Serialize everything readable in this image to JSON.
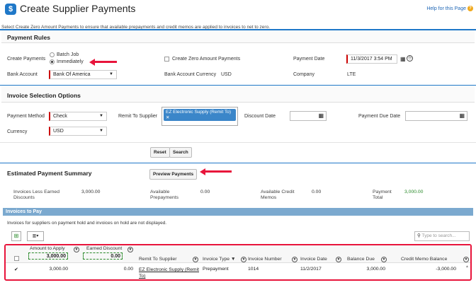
{
  "header": {
    "title": "Create Supplier Payments",
    "help": "Help for this Page",
    "subtitle": "Select Create Zero Amount Payments to ensure that available prepayments and credit memos are applied to invoices to net to zero."
  },
  "payment_rules": {
    "title": "Payment Rules",
    "create_payments_label": "Create Payments",
    "batch_job": "Batch Job",
    "immediately": "Immediately",
    "zero_amount_label": "Create Zero Amount Payments",
    "payment_date_label": "Payment Date",
    "payment_date_value": "11/3/2017 3:54 PM",
    "bank_account_label": "Bank Account",
    "bank_account_value": "Bank Of America",
    "currency_label": "Bank Account Currency",
    "currency_value": "USD",
    "company_label": "Company",
    "company_value": "LTE"
  },
  "invoice_selection": {
    "title": "Invoice Selection Options",
    "payment_method_label": "Payment Method",
    "payment_method_value": "Check",
    "remit_label": "Remit To Supplier",
    "remit_value": "EZ Electronic Supply (Remit To)",
    "discount_date_label": "Discount Date",
    "payment_due_label": "Payment Due Date",
    "currency_label": "Currency",
    "currency_value": "USD",
    "reset": "Reset",
    "search": "Search"
  },
  "summary": {
    "title": "Estimated Payment Summary",
    "preview": "Preview Payments",
    "less_earned_label_1": "Invoices Less Earned",
    "less_earned_label_2": "Discounts",
    "less_earned_value": "3,000.00",
    "prepay_label_1": "Available",
    "prepay_label_2": "Prepayments",
    "prepay_value": "0.00",
    "credit_label_1": "Available Credit",
    "credit_label_2": "Memos",
    "credit_value": "0.00",
    "total_label_1": "Payment",
    "total_label_2": "Total",
    "total_value": "3,000.00",
    "total_color": "#2a8a2a"
  },
  "invoices": {
    "title": "Invoices to Pay",
    "note": "Invoices for suppliers on payment hold and invoices on hold are not displayed.",
    "search_placeholder": "Type to search...",
    "columns": {
      "amount": "Amount to Apply",
      "earned": "Earned Discount",
      "remit": "Remit To Supplier",
      "type": "Invoice Type ▼",
      "number": "Invoice Number",
      "date": "Invoice Date",
      "balance": "Balance Due",
      "credit": "Credit Memo Balance"
    },
    "totals": {
      "amount": "3,000.00",
      "earned": "0.00"
    },
    "row": {
      "amount": "3,000.00",
      "earned": "0.00",
      "remit_1": "EZ Electronic Supply (Remit",
      "remit_2": "To)",
      "type": "Prepayment",
      "number": "1014",
      "date": "11/2/2017",
      "balance": "3,000.00",
      "credit": "-3,000.00"
    }
  },
  "icons": {
    "app": "app-icon",
    "calendar": "calendar-icon",
    "clock": "clock-icon",
    "filter": "filter-icon",
    "search": "search-icon",
    "export": "export-icon",
    "columns": "columns-icon"
  },
  "colors": {
    "accent": "#1f78c8",
    "highlight": "#e8143b"
  }
}
